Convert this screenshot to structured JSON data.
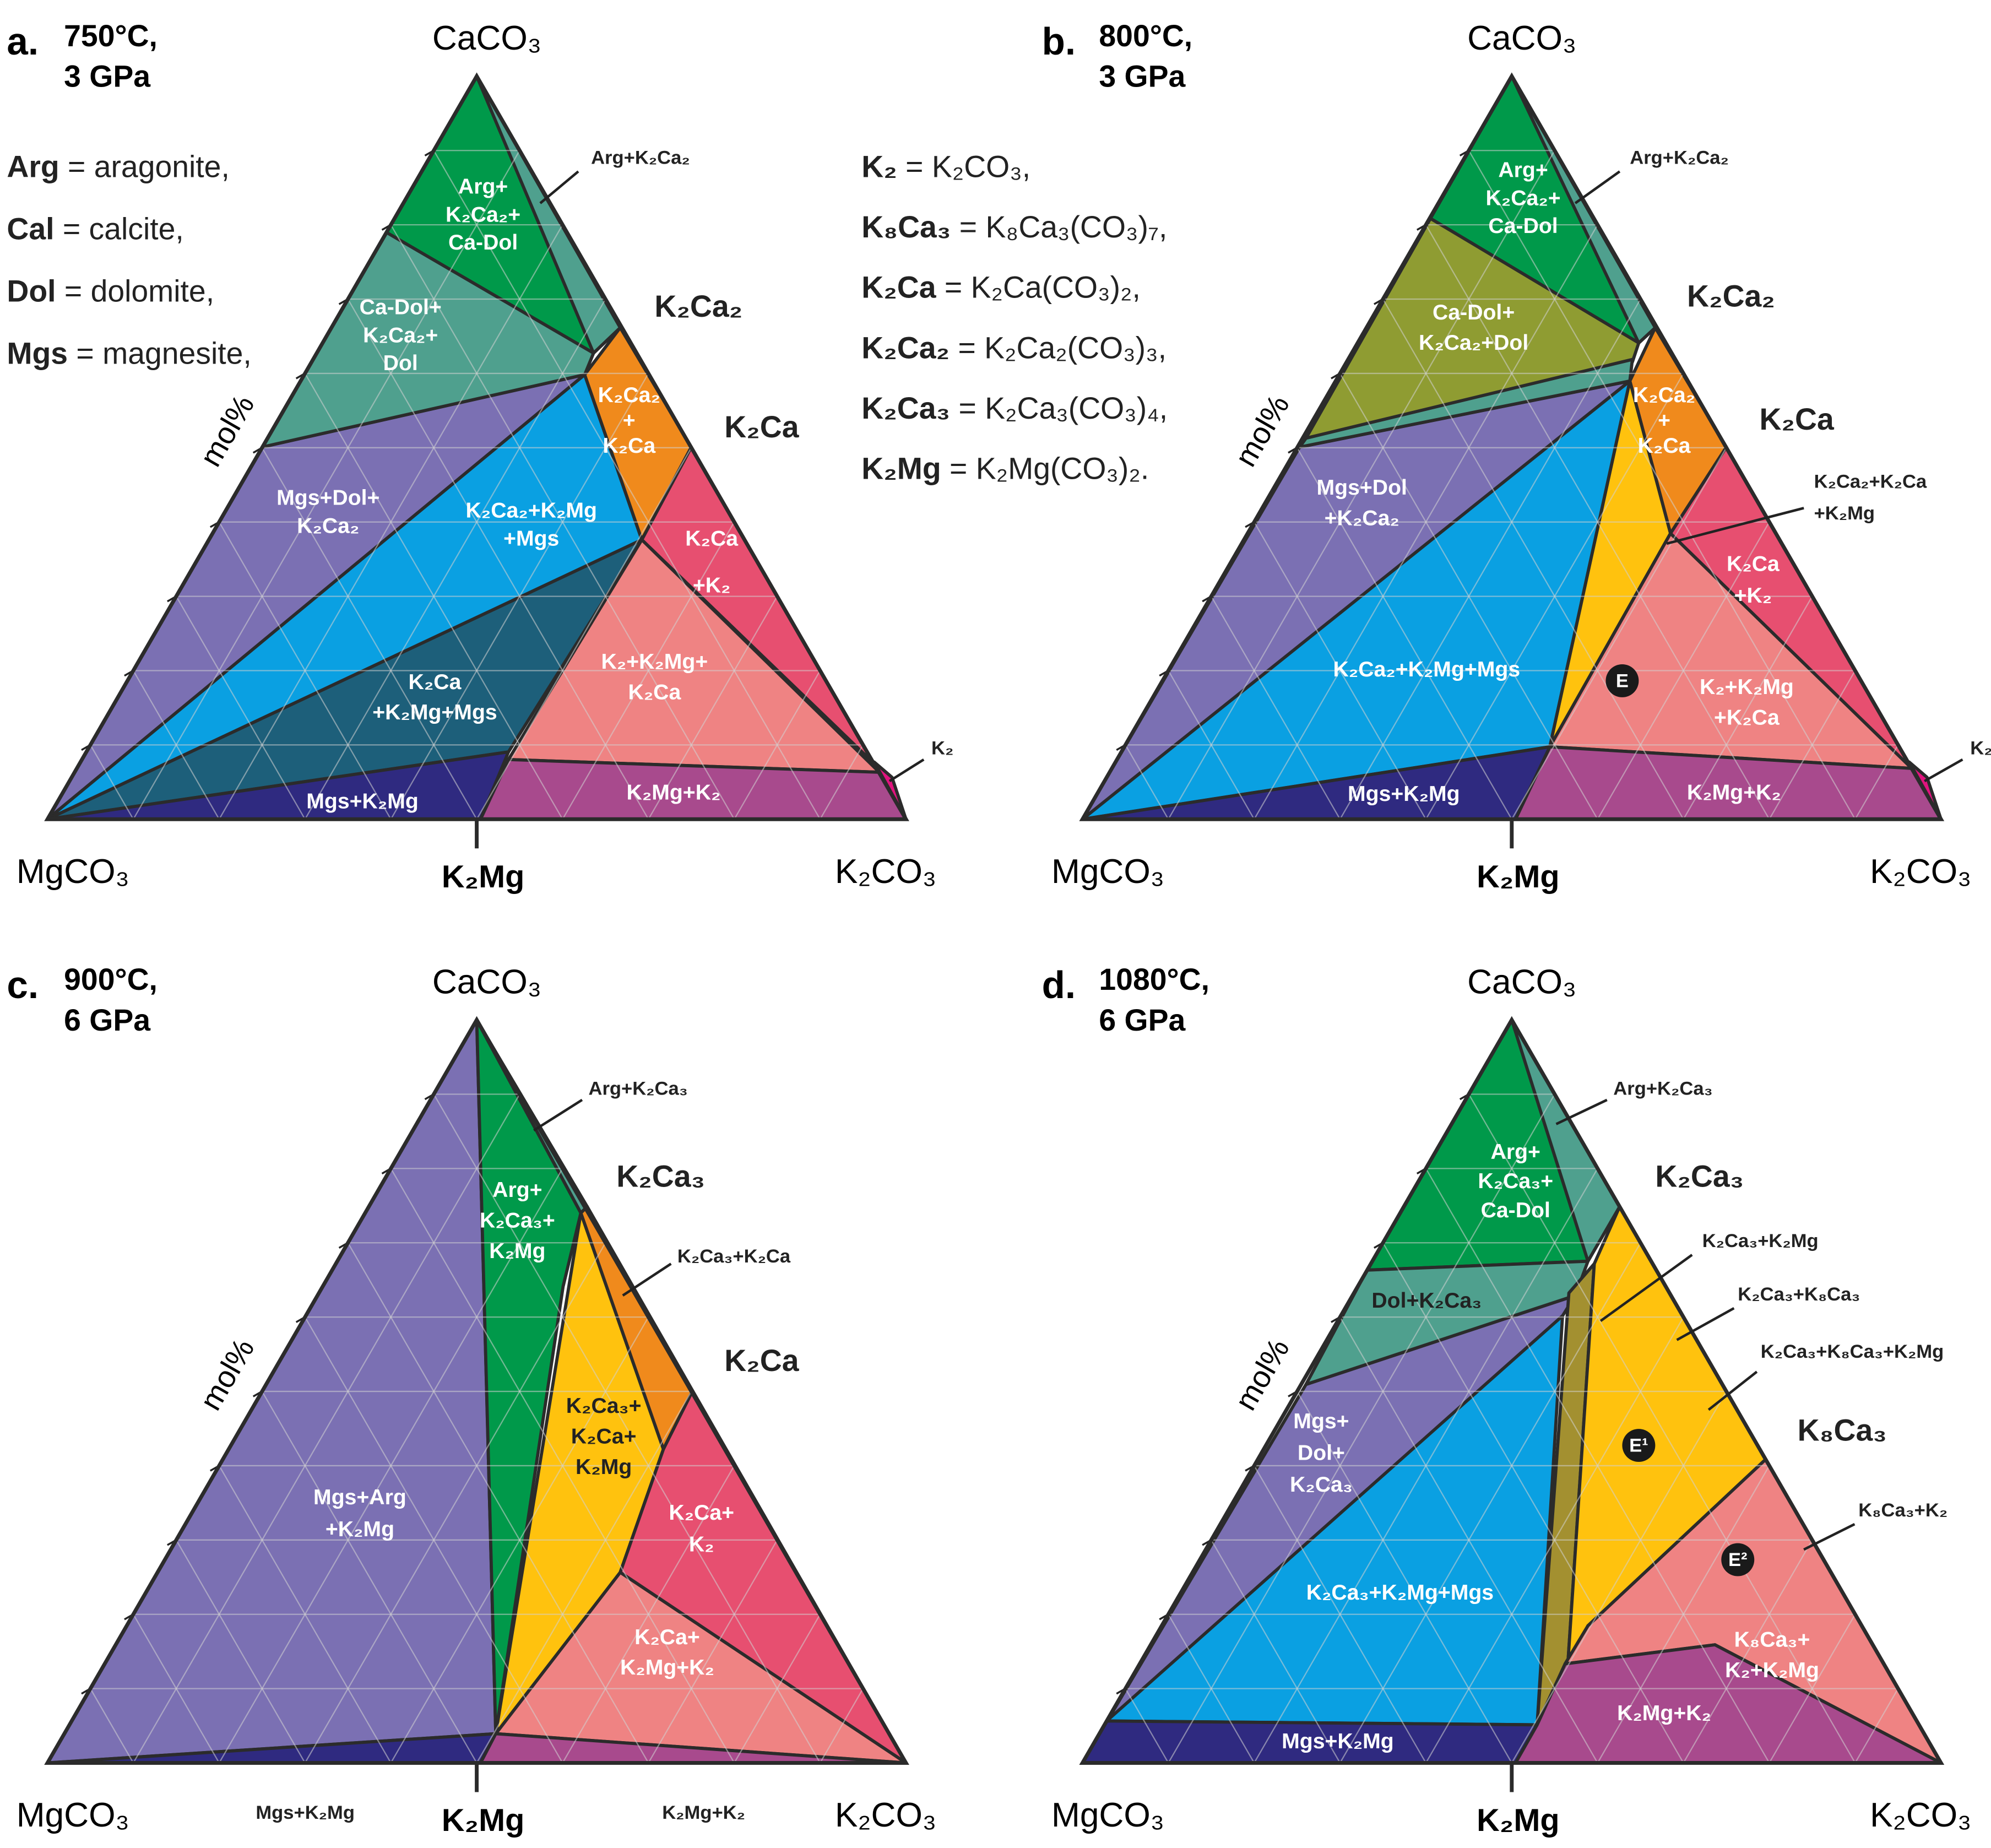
{
  "panels": [
    {
      "label": "a.",
      "conditions": [
        "750°C,",
        "3 GPa"
      ],
      "corners": {
        "top": "CaCO₃",
        "left": "MgCO₃",
        "right": "K₂CO₃"
      },
      "bottom_mid": "K₂Mg",
      "axis_label": "mol%",
      "fields": [
        [
          "Arg+",
          "K₂Ca₂+",
          "Ca-Dol"
        ],
        [
          "Ca-Dol+",
          "K₂Ca₂+",
          "Dol"
        ],
        [
          "K₂Ca₂",
          "+",
          "K₂Ca"
        ],
        [
          "Mgs+Dol+",
          "K₂Ca₂"
        ],
        [
          "K₂Ca₂+K₂Mg",
          "+Mgs"
        ],
        [
          "K₂Ca",
          "+K₂"
        ],
        [
          "K₂Ca",
          "+K₂Mg+Mgs"
        ],
        [
          "K₂+K₂Mg+",
          "K₂Ca"
        ],
        [
          "Mgs+K₂Mg"
        ],
        [
          "K₂Mg+K₂"
        ]
      ],
      "annotations": [
        "Arg+K₂Ca₂",
        "K₂"
      ],
      "points": [
        "K₂Ca₂",
        "K₂Ca"
      ],
      "markers": []
    },
    {
      "label": "b.",
      "conditions": [
        "800°C,",
        "3 GPa"
      ],
      "corners": {
        "top": "CaCO₃",
        "left": "MgCO₃",
        "right": "K₂CO₃"
      },
      "bottom_mid": "K₂Mg",
      "axis_label": "mol%",
      "fields": [
        [
          "Arg+",
          "K₂Ca₂+",
          "Ca-Dol"
        ],
        [
          "Ca-Dol+",
          "K₂Ca₂+Dol"
        ],
        [
          "K₂Ca₂",
          "+",
          "K₂Ca"
        ],
        [
          "Mgs+Dol",
          "+K₂Ca₂"
        ],
        [
          "K₂Ca₂+K₂Mg+Mgs"
        ],
        [
          "K₂Ca",
          "+K₂"
        ],
        [
          "K₂+K₂Mg",
          "+K₂Ca"
        ],
        [
          "Mgs+K₂Mg"
        ],
        [
          "K₂Mg+K₂"
        ]
      ],
      "annotations": [
        "Arg+K₂Ca₂",
        "K₂Ca₂+K₂Ca",
        "+K₂Mg",
        "K₂"
      ],
      "points": [
        "K₂Ca₂",
        "K₂Ca"
      ],
      "markers": [
        "E"
      ]
    },
    {
      "label": "c.",
      "conditions": [
        "900°C,",
        "6 GPa"
      ],
      "corners": {
        "top": "CaCO₃",
        "left": "MgCO₃",
        "right": "K₂CO₃"
      },
      "bottom_mid": "K₂Mg",
      "axis_label": "mol%",
      "fields": [
        [
          "Mgs+Arg",
          "+K₂Mg"
        ],
        [
          "Arg+",
          "K₂Ca₃+",
          "K₂Mg"
        ],
        [
          "K₂Ca₃+",
          "K₂Ca+",
          "K₂Mg"
        ],
        [
          "K₂Ca+",
          "K₂"
        ],
        [
          "K₂Ca+",
          "K₂Mg+K₂"
        ]
      ],
      "annotations": [
        "Arg+K₂Ca₃",
        "K₂Ca₃+K₂Ca",
        "Mgs+K₂Mg",
        "K₂Mg+K₂"
      ],
      "points": [
        "K₂Ca₃",
        "K₂Ca"
      ],
      "markers": []
    },
    {
      "label": "d.",
      "conditions": [
        "1080°C,",
        "6 GPa"
      ],
      "corners": {
        "top": "CaCO₃",
        "left": "MgCO₃",
        "right": "K₂CO₃"
      },
      "bottom_mid": "K₂Mg",
      "axis_label": "mol%",
      "fields": [
        [
          "Arg+",
          "K₂Ca₃+",
          "Ca-Dol"
        ],
        [
          "Dol+K₂Ca₃"
        ],
        [
          "Mgs+",
          "Dol+",
          "K₂Ca₃"
        ],
        [
          "K₂Ca₃+K₂Mg+Mgs"
        ],
        [
          "K₈Ca₃+",
          "K₂+K₂Mg"
        ],
        [
          "K₂Mg+K₂"
        ],
        [
          "Mgs+K₂Mg"
        ]
      ],
      "annotations": [
        "Arg+K₂Ca₃",
        "K₂Ca₃+K₂Mg",
        "K₂Ca₃+K₈Ca₃",
        "K₂Ca₃+K₈Ca₃+K₂Mg",
        "K₈Ca₃+K₂"
      ],
      "points": [
        "K₂Ca₃",
        "K₈Ca₃"
      ],
      "markers": [
        "E¹",
        "E²"
      ]
    }
  ],
  "legend_left": [
    {
      "term": "Arg",
      "definition": " = aragonite,"
    },
    {
      "term": "Cal",
      "definition": " = calcite,"
    },
    {
      "term": "Dol",
      "definition": " = dolomite,"
    },
    {
      "term": "Mgs",
      "definition": " = magnesite,"
    }
  ],
  "legend_right": [
    {
      "term": "K₂",
      "definition": " = K₂CO₃,"
    },
    {
      "term": "K₈Ca₃",
      "definition": " = K₈Ca₃(CO₃)₇,"
    },
    {
      "term": "K₂Ca",
      "definition": " = K₂Ca(CO₃)₂,"
    },
    {
      "term": "K₂Ca₂",
      "definition": " = K₂Ca₂(CO₃)₃,"
    },
    {
      "term": "K₂Ca₃",
      "definition": " = K₂Ca₃(CO₃)₄,"
    },
    {
      "term": "K₂Mg",
      "definition": " = K₂Mg(CO₃)₂."
    }
  ]
}
